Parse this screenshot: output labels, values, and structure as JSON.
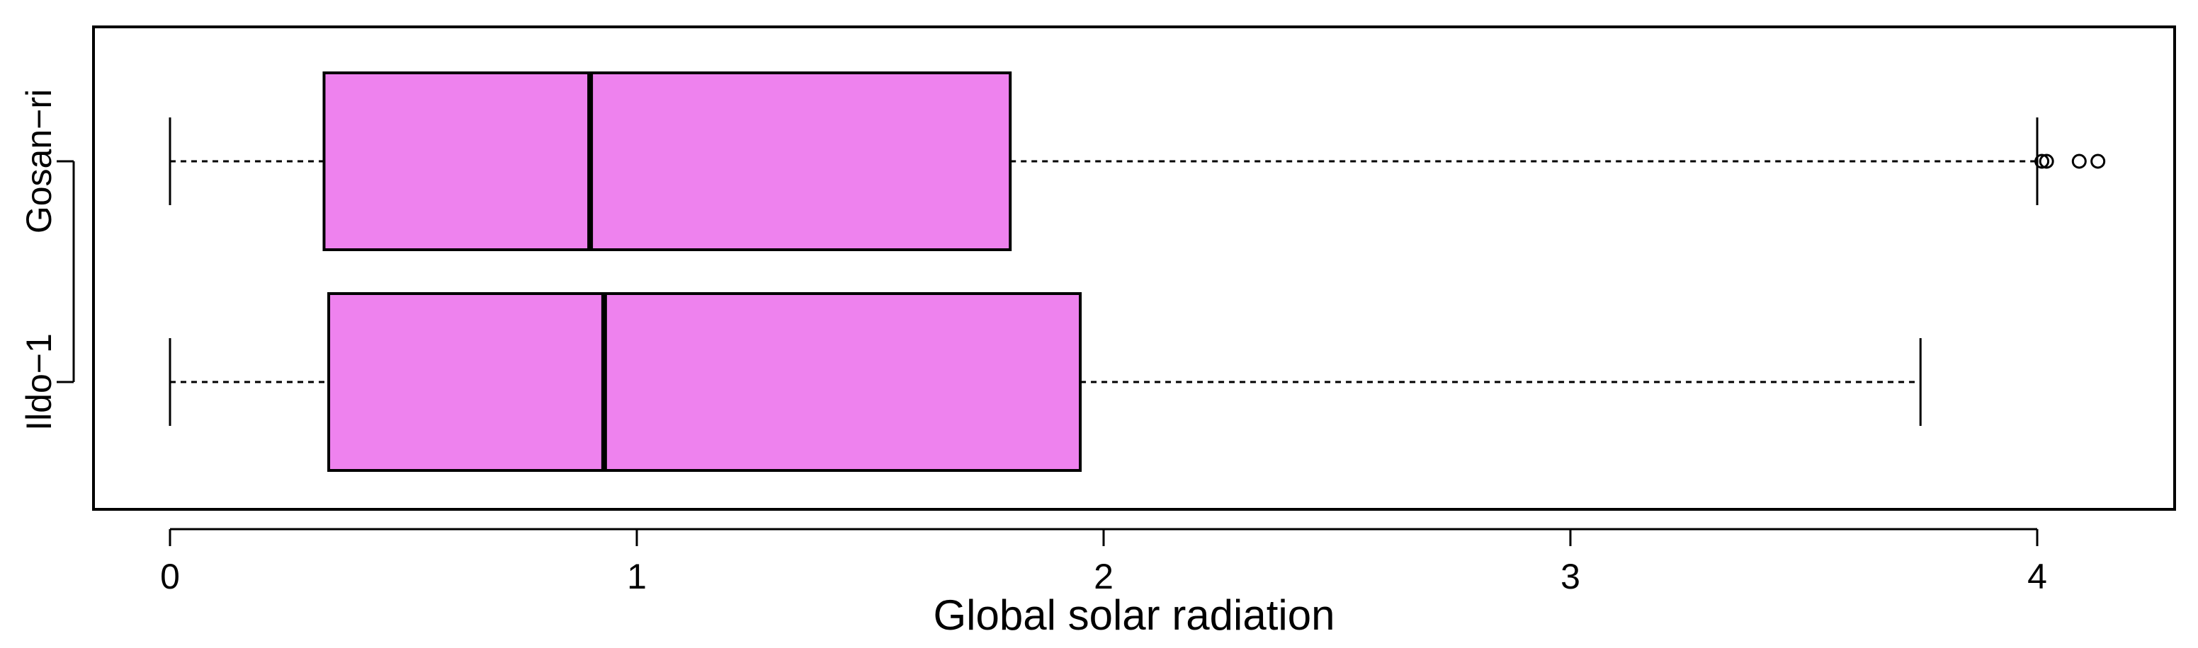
{
  "chart_data": {
    "type": "boxplot",
    "orientation": "horizontal",
    "xlabel": "Global solar radiation",
    "ylabel": "",
    "xlim": [
      -0.16,
      4.31
    ],
    "xticks": [
      "0",
      "1",
      "2",
      "3",
      "4"
    ],
    "box_color": "#ee82ee",
    "grid": false,
    "series": [
      {
        "name": "Gosan−ri",
        "whisker_low": 0.0,
        "q1": 0.33,
        "median": 0.9,
        "q3": 1.8,
        "whisker_high": 4.0,
        "outliers": [
          4.01,
          4.02,
          4.09,
          4.13
        ]
      },
      {
        "name": "Ildo−1",
        "whisker_low": 0.0,
        "q1": 0.34,
        "median": 0.93,
        "q3": 1.95,
        "whisker_high": 3.75,
        "outliers": []
      }
    ]
  }
}
